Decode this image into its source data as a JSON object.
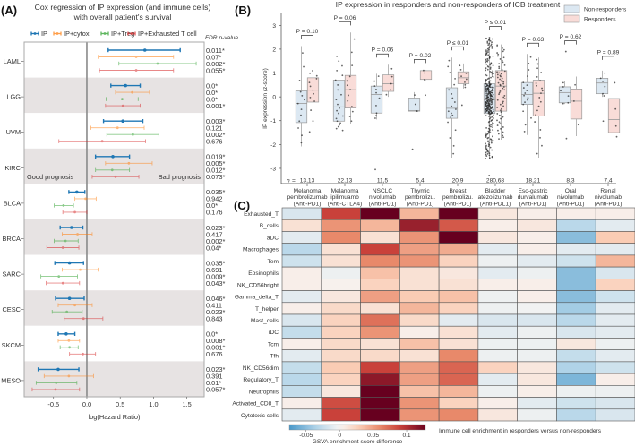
{
  "panels": {
    "a": "(A)",
    "b": "(B)",
    "c": "(C)"
  },
  "chart_data": [
    {
      "type": "forest",
      "title_line1": "Cox regression of IP expression (and immune cells)",
      "title_line2": "with overall patient's survival",
      "xlabel": "log(Hazard Ratio)",
      "xlim": [
        -0.94,
        1.76
      ],
      "xticks": [
        -0.5,
        0.0,
        0.5,
        1.0,
        1.5
      ],
      "xtick_labels": [
        "-0.5",
        "0.0",
        "0.5",
        "1.0",
        "1.5"
      ],
      "fdr_header": "FDR p-value",
      "good_label": "Good prognosis",
      "bad_label": "Bad prognosis",
      "legend_placement": "top",
      "models": [
        {
          "name": "IP",
          "color": "#1f77b4"
        },
        {
          "name": "IP+cytox",
          "color": "#ff7f0e"
        },
        {
          "name": "IP+Treg",
          "color": "#2ca02c"
        },
        {
          "name": "IP+Exhausted T cell",
          "color": "#d62728"
        }
      ],
      "cancers": [
        {
          "name": "LAML",
          "shaded": false,
          "est": [
            [
              0.87,
              0.32,
              1.4
            ],
            [
              0.74,
              0.17,
              1.3
            ],
            [
              1.06,
              0.48,
              1.64
            ],
            [
              0.74,
              0.19,
              1.3
            ]
          ],
          "fdr": [
            "0.011*",
            "0.07*",
            "0.002*",
            "0.055*"
          ]
        },
        {
          "name": "LGG",
          "shaded": true,
          "est": [
            [
              0.58,
              0.36,
              0.8
            ],
            [
              0.68,
              0.43,
              0.94
            ],
            [
              0.53,
              0.29,
              0.77
            ],
            [
              0.54,
              0.28,
              0.8
            ]
          ],
          "fdr": [
            "0.0*",
            "0.0*",
            "0.0*",
            "0.001*"
          ]
        },
        {
          "name": "UVM",
          "shaded": false,
          "est": [
            [
              0.54,
              0.25,
              0.84
            ],
            [
              0.46,
              0.06,
              0.86
            ],
            [
              0.69,
              0.3,
              1.08
            ],
            [
              0.23,
              -0.42,
              0.88
            ]
          ],
          "fdr": [
            "0.003*",
            "0.121",
            "0.002*",
            "0.676"
          ]
        },
        {
          "name": "KIRC",
          "shaded": true,
          "est": [
            [
              0.39,
              0.13,
              0.64
            ],
            [
              0.63,
              0.28,
              0.98
            ],
            [
              0.38,
              0.13,
              0.64
            ],
            [
              0.43,
              0.08,
              0.78
            ]
          ],
          "fdr": [
            "0.019*",
            "0.005*",
            "0.012*",
            "0.073*"
          ]
        },
        {
          "name": "BLCA",
          "shaded": false,
          "est": [
            [
              -0.15,
              -0.27,
              -0.03
            ],
            [
              -0.02,
              -0.18,
              0.14
            ],
            [
              -0.35,
              -0.49,
              -0.2
            ],
            [
              -0.18,
              -0.36,
              0.0
            ]
          ],
          "fdr": [
            "0.035*",
            "0.942",
            "0.0*",
            "0.176"
          ]
        },
        {
          "name": "BRCA",
          "shaded": true,
          "est": [
            [
              -0.23,
              -0.4,
              -0.06
            ],
            [
              -0.14,
              -0.37,
              0.08
            ],
            [
              -0.32,
              -0.49,
              -0.13
            ],
            [
              -0.36,
              -0.6,
              -0.12
            ]
          ],
          "fdr": [
            "0.023*",
            "0.417",
            "0.002*",
            "0.04*"
          ]
        },
        {
          "name": "SARC",
          "shaded": false,
          "est": [
            [
              -0.26,
              -0.48,
              -0.05
            ],
            [
              -0.1,
              -0.37,
              0.17
            ],
            [
              -0.42,
              -0.69,
              -0.14
            ],
            [
              -0.36,
              -0.61,
              -0.11
            ]
          ],
          "fdr": [
            "0.035*",
            "0.691",
            "0.009*",
            "0.043*"
          ]
        },
        {
          "name": "CESC",
          "shaded": true,
          "est": [
            [
              -0.26,
              -0.47,
              -0.04
            ],
            [
              -0.18,
              -0.43,
              0.08
            ],
            [
              -0.3,
              -0.52,
              -0.07
            ],
            [
              -0.05,
              -0.34,
              0.24
            ]
          ],
          "fdr": [
            "0.046*",
            "0.411",
            "0.023*",
            "0.843"
          ]
        },
        {
          "name": "SKCM",
          "shaded": false,
          "est": [
            [
              -0.31,
              -0.43,
              -0.18
            ],
            [
              -0.27,
              -0.43,
              -0.11
            ],
            [
              -0.26,
              -0.4,
              -0.13
            ],
            [
              -0.06,
              -0.26,
              0.13
            ]
          ],
          "fdr": [
            "0.0*",
            "0.008*",
            "0.001*",
            "0.676"
          ]
        },
        {
          "name": "MESO",
          "shaded": true,
          "est": [
            [
              -0.43,
              -0.73,
              -0.12
            ],
            [
              -0.27,
              -0.64,
              0.1
            ],
            [
              -0.46,
              -0.76,
              -0.15
            ],
            [
              -0.47,
              -0.82,
              -0.11
            ]
          ],
          "fdr": [
            "0.023*",
            "0.391",
            "0.01*",
            "0.057*"
          ]
        }
      ]
    },
    {
      "type": "box",
      "title": "IP expression in responders and non-responders of ICB treatment",
      "ylabel": "IP expression (z-score)",
      "ylim": [
        -3.64,
        3.5
      ],
      "yticks": [
        -3,
        -2,
        -1,
        0,
        1,
        2,
        3
      ],
      "ytick_labels": [
        "-3",
        "-2",
        "-1",
        "0",
        "1",
        "2",
        "3"
      ],
      "legend_placement": "top-right",
      "series": [
        {
          "name": "Non-responders",
          "fill": "#dce8f2"
        },
        {
          "name": "Responders",
          "fill": "#f9dcd8"
        }
      ],
      "n_prefix": "n = ",
      "groups": [
        {
          "label": [
            "Melanoma",
            "pembrolizumab",
            "(Anti-PD1)"
          ],
          "n_label": "13,13",
          "n": [
            13,
            13
          ],
          "p": "P = 0.10",
          "nr": {
            "stats": [
              -2.08,
              -1.08,
              -0.28,
              0.25,
              2.13
            ],
            "outliers": []
          },
          "r": {
            "stats": [
              -1.7,
              -0.22,
              0.28,
              0.8,
              1.15
            ],
            "outliers": []
          }
        },
        {
          "label": [
            "Melanoma",
            "ipilimuamb",
            "(Anti-CTLA4)"
          ],
          "n_label": "22,13",
          "n": [
            22,
            13
          ],
          "p": "P = 0.06",
          "nr": {
            "stats": [
              -1.45,
              -1.02,
              -0.42,
              0.7,
              1.8
            ],
            "outliers": []
          },
          "r": {
            "stats": [
              -1.12,
              -0.47,
              0.3,
              0.9,
              2.7
            ],
            "outliers": []
          }
        },
        {
          "label": [
            "NSCLC",
            "nivolumab",
            "(Anti-PD1)"
          ],
          "n_label": "11,5",
          "n": [
            11,
            5
          ],
          "p": "P = 0.06",
          "nr": {
            "stats": [
              -0.95,
              -0.68,
              0.1,
              0.45,
              0.97
            ],
            "outliers": [
              -3.05
            ]
          },
          "r": {
            "stats": [
              0.0,
              0.23,
              0.55,
              0.92,
              1.35
            ],
            "outliers": []
          }
        },
        {
          "label": [
            "Thymic",
            "pembrolizu.",
            "(Anti-PD1)"
          ],
          "n_label": "5,4",
          "n": [
            5,
            4
          ],
          "p": "P = 0.02",
          "nr": {
            "stats": [
              -0.6,
              -0.6,
              -0.58,
              -0.05,
              0.2
            ],
            "outliers": [
              -2.2
            ]
          },
          "r": {
            "stats": [
              0.7,
              0.73,
              1.0,
              1.1,
              1.12
            ],
            "outliers": [
              0.07
            ]
          }
        },
        {
          "label": [
            "Breast",
            "pembrolizu.",
            "(Anti-PD1)"
          ],
          "n_label": "20,9",
          "n": [
            20,
            9
          ],
          "p": "P ≤ 0.01",
          "nr": {
            "stats": [
              -2.55,
              -0.9,
              -0.48,
              0.38,
              1.65
            ],
            "outliers": []
          },
          "r": {
            "stats": [
              0.35,
              0.55,
              0.8,
              1.05,
              1.4
            ],
            "outliers": [
              -0.35
            ]
          }
        },
        {
          "label": [
            "Bladder",
            "atezolizumab",
            "(Anti-PDL1)"
          ],
          "n_label": "280,68",
          "n": [
            280,
            68
          ],
          "p": "P ≤ 0.01",
          "nr": {
            "stats": [
              -2.6,
              -0.7,
              -0.12,
              0.55,
              2.5
            ],
            "outliers": [
              -3.3
            ]
          },
          "r": {
            "stats": [
              -1.8,
              -0.6,
              0.45,
              1.1,
              2.2
            ],
            "outliers": []
          }
        },
        {
          "label": [
            "Eso-gastric",
            "durvalumab",
            "(Anti-PD1)"
          ],
          "n_label": "18,21",
          "n": [
            18,
            21
          ],
          "p": "P = 0.63",
          "nr": {
            "stats": [
              -1.6,
              -0.32,
              0.1,
              0.6,
              1.8
            ],
            "outliers": []
          },
          "r": {
            "stats": [
              -2.55,
              -0.8,
              0.15,
              0.7,
              1.65
            ],
            "outliers": []
          }
        },
        {
          "label": [
            "Oral",
            "nivolumab",
            "(Anti-PD1)"
          ],
          "n_label": "8,3",
          "n": [
            8,
            3
          ],
          "p": "P = 0.62",
          "nr": {
            "stats": [
              -0.3,
              -0.25,
              0.18,
              0.42,
              0.68
            ],
            "outliers": [
              1.9,
              -1.75
            ]
          },
          "r": {
            "stats": [
              -1.65,
              -0.93,
              -0.18,
              0.33,
              0.85
            ],
            "outliers": []
          }
        },
        {
          "label": [
            "Renal",
            "nivolumab",
            "(Anti-PD1)"
          ],
          "n_label": "7,4",
          "n": [
            7,
            4
          ],
          "p": "P = 0.89",
          "nr": {
            "stats": [
              0.0,
              0.13,
              0.58,
              0.78,
              1.1
            ],
            "outliers": [
              -1.02
            ]
          },
          "r": {
            "stats": [
              -1.85,
              -1.5,
              -0.95,
              -0.07,
              1.25
            ],
            "outliers": []
          }
        }
      ]
    },
    {
      "type": "heatmap",
      "caption": "Immune cell enrichment in responders versus non-responders",
      "colorbar_label": "GSVA enrichment score difference",
      "colorbar_range": [
        -0.075,
        0.128
      ],
      "colorbar_ticks": [
        -0.05,
        0,
        0.05,
        0.1
      ],
      "colorbar_tick_labels": [
        "-0.05",
        "0",
        "0.05",
        "0.1"
      ],
      "rows": [
        "Exhausted_T",
        "B_cells",
        "aDC",
        "Macrophages",
        "Tem",
        "Eosinophils",
        "NK_CD56bright",
        "Gamma_delta_T",
        "T_helper",
        "Mast_cells",
        "iDC",
        "Tcm",
        "Tfh",
        "NK_CD56dim",
        "Regulatory_T",
        "Neutrophils",
        "Activated_CD8_T",
        "Cytotoxic cells"
      ],
      "values": [
        [
          -0.015,
          0.09,
          0.13,
          0.04,
          0.13,
          0.01,
          0.005,
          0.005,
          0.005
        ],
        [
          0.015,
          0.055,
          0.04,
          0.11,
          0.08,
          0.005,
          0.01,
          -0.03,
          -0.01
        ],
        [
          -0.01,
          0.06,
          0.015,
          0.055,
          0.13,
          0.01,
          0.005,
          -0.05,
          0.03
        ],
        [
          -0.03,
          0.015,
          0.09,
          0.05,
          0.045,
          -0.01,
          0.005,
          -0.01,
          -0.01
        ],
        [
          -0.02,
          0.015,
          0.06,
          0.055,
          0.025,
          -0.005,
          -0.01,
          -0.02,
          0.04
        ],
        [
          0.005,
          -0.005,
          0.035,
          0.015,
          0.01,
          -0.01,
          -0.005,
          -0.05,
          -0.015
        ],
        [
          0.005,
          0.003,
          0.025,
          0.015,
          0.015,
          0.005,
          0.005,
          -0.05,
          0.025
        ],
        [
          -0.01,
          0.01,
          0.05,
          0.03,
          0.035,
          -0.005,
          0.005,
          -0.05,
          -0.02
        ],
        [
          0.005,
          0.02,
          0.015,
          0.04,
          0.025,
          -0.005,
          -0.003,
          -0.04,
          -0.01
        ],
        [
          -0.015,
          0.025,
          0.07,
          0.02,
          -0.01,
          -0.015,
          -0.015,
          -0.03,
          -0.01
        ],
        [
          -0.025,
          0.025,
          0.055,
          0.005,
          0.015,
          -0.01,
          -0.005,
          -0.015,
          -0.01
        ],
        [
          0.005,
          0.02,
          0.015,
          0.035,
          0.015,
          -0.005,
          -0.005,
          0.01,
          -0.005
        ],
        [
          -0.01,
          0.02,
          0.02,
          0.015,
          0.06,
          -0.005,
          -0.005,
          -0.025,
          -0.01
        ],
        [
          -0.025,
          0.03,
          0.09,
          0.05,
          0.075,
          0.025,
          0.01,
          -0.035,
          -0.02
        ],
        [
          -0.03,
          0.025,
          0.115,
          0.05,
          0.075,
          -0.01,
          0.01,
          -0.055,
          0.005
        ],
        [
          -0.025,
          0.01,
          0.135,
          0.035,
          0.04,
          -0.005,
          0.005,
          -0.005,
          -0.005
        ],
        [
          0.005,
          0.085,
          0.13,
          0.055,
          0.025,
          0.005,
          -0.01,
          -0.02,
          -0.015
        ],
        [
          -0.01,
          0.09,
          0.13,
          0.055,
          0.06,
          0.01,
          -0.005,
          -0.03,
          -0.015
        ]
      ]
    }
  ]
}
